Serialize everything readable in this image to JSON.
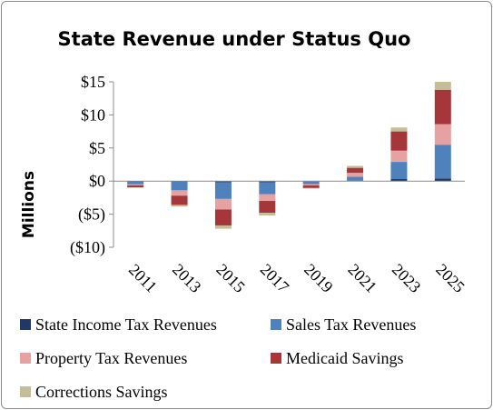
{
  "chart_data": {
    "type": "bar",
    "stacked": true,
    "title": "State Revenue under Status Quo",
    "xlabel": "",
    "ylabel": "Millions",
    "ylim": [
      -10,
      15
    ],
    "ytick_values": [
      15,
      10,
      5,
      0,
      -5,
      -10
    ],
    "ytick_labels": [
      "$15",
      "$10",
      "$5",
      "$0",
      "($5)",
      "($10)"
    ],
    "categories": [
      "2011",
      "2013",
      "2015",
      "2017",
      "2019",
      "2021",
      "2023",
      "2025"
    ],
    "grid": false,
    "legend_position": "bottom",
    "series": [
      {
        "name": "State Income Tax Revenues",
        "color": "#1f3864",
        "values": [
          -0.1,
          -0.1,
          -0.2,
          -0.2,
          -0.05,
          0.05,
          0.3,
          0.4
        ]
      },
      {
        "name": "Sales Tax Revenues",
        "color": "#4f81bd",
        "values": [
          -0.4,
          -1.3,
          -2.5,
          -1.8,
          -0.4,
          0.6,
          2.6,
          5.1
        ]
      },
      {
        "name": "Property Tax Revenues",
        "color": "#e6a1a3",
        "values": [
          -0.15,
          -0.8,
          -1.6,
          -1.0,
          -0.2,
          0.6,
          1.7,
          3.1
        ]
      },
      {
        "name": "Medicaid Savings",
        "color": "#a5373a",
        "values": [
          -0.3,
          -1.4,
          -2.4,
          -1.8,
          -0.4,
          0.75,
          2.9,
          5.2
        ]
      },
      {
        "name": "Corrections Savings",
        "color": "#c4bd97",
        "values": [
          -0.05,
          -0.25,
          -0.5,
          -0.4,
          -0.05,
          0.3,
          0.6,
          1.2
        ]
      }
    ]
  }
}
